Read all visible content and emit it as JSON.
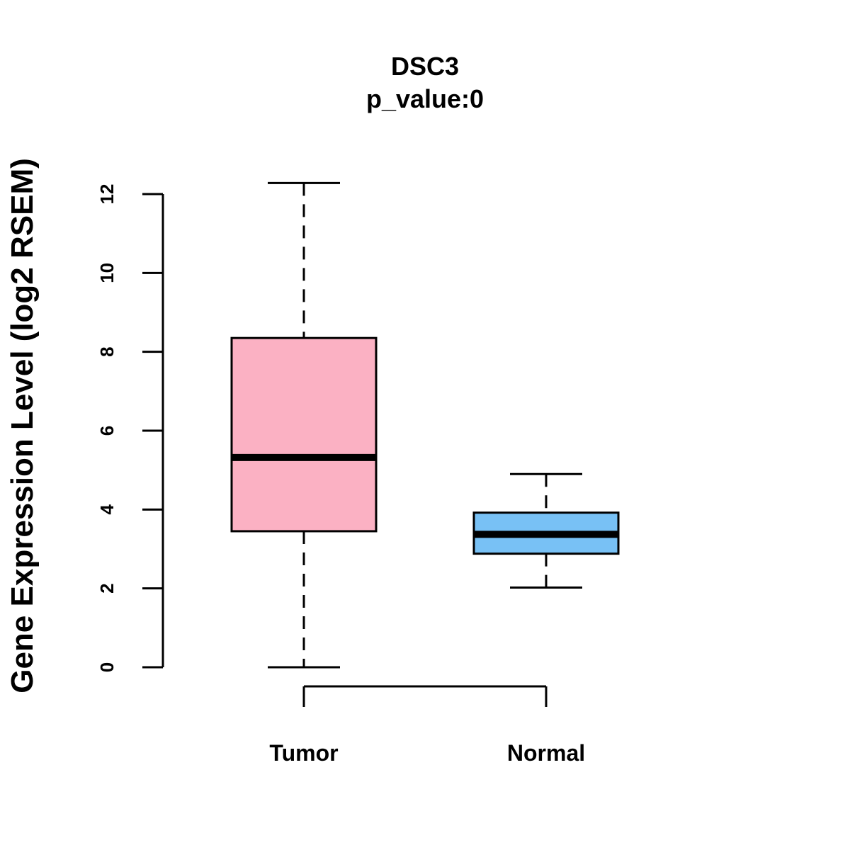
{
  "chart_data": {
    "type": "boxplot",
    "title": "DSC3",
    "subtitle": "p_value:0",
    "ylabel": "Gene Expression Level (log2 RSEM)",
    "xlabel": "",
    "ylim": [
      0,
      12
    ],
    "yticks": [
      0,
      2,
      4,
      6,
      8,
      10,
      12
    ],
    "ytick_labels": [
      "0",
      "2",
      "4",
      "6",
      "8",
      "10",
      "12"
    ],
    "grid": false,
    "categories": [
      "Tumor",
      "Normal"
    ],
    "boxes": [
      {
        "name": "Tumor",
        "min": 0.0,
        "q1": 3.45,
        "median": 5.32,
        "q3": 8.35,
        "max": 12.28,
        "color": "#FBB1C3"
      },
      {
        "name": "Normal",
        "min": 2.02,
        "q1": 2.88,
        "median": 3.37,
        "q3": 3.92,
        "max": 4.9,
        "color": "#78C1F5"
      }
    ],
    "comparison_bracket": {
      "from": "Tumor",
      "to": "Normal"
    }
  }
}
